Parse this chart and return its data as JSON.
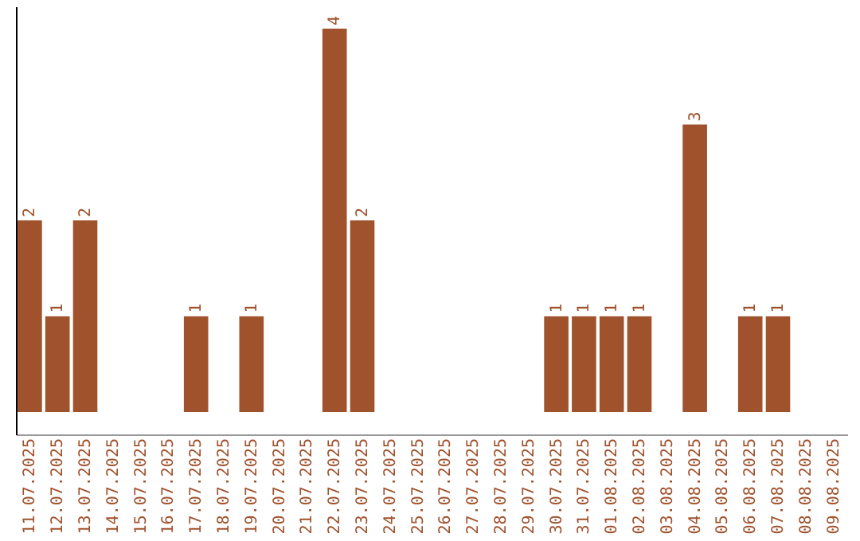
{
  "chart_data": {
    "type": "bar",
    "categories": [
      "11.07.2025",
      "12.07.2025",
      "13.07.2025",
      "14.07.2025",
      "15.07.2025",
      "16.07.2025",
      "17.07.2025",
      "18.07.2025",
      "19.07.2025",
      "20.07.2025",
      "21.07.2025",
      "22.07.2025",
      "23.07.2025",
      "24.07.2025",
      "25.07.2025",
      "26.07.2025",
      "27.07.2025",
      "28.07.2025",
      "29.07.2025",
      "30.07.2025",
      "31.07.2025",
      "01.08.2025",
      "02.08.2025",
      "03.08.2025",
      "04.08.2025",
      "05.08.2025",
      "06.08.2025",
      "07.08.2025",
      "08.08.2025",
      "09.08.2025"
    ],
    "values": [
      2,
      1,
      2,
      0,
      0,
      0,
      1,
      0,
      1,
      0,
      0,
      4,
      2,
      0,
      0,
      0,
      0,
      0,
      0,
      1,
      1,
      1,
      1,
      0,
      3,
      0,
      1,
      1,
      0,
      0
    ],
    "value_labels": [
      "2",
      "1",
      "2",
      null,
      null,
      null,
      "1",
      null,
      "1",
      null,
      null,
      "4",
      "2",
      null,
      null,
      null,
      null,
      null,
      null,
      "1",
      "1",
      "1",
      "1",
      null,
      "3",
      null,
      "1",
      "1",
      null,
      null
    ],
    "color": "#a0522d",
    "tick_labels": "x"
  }
}
